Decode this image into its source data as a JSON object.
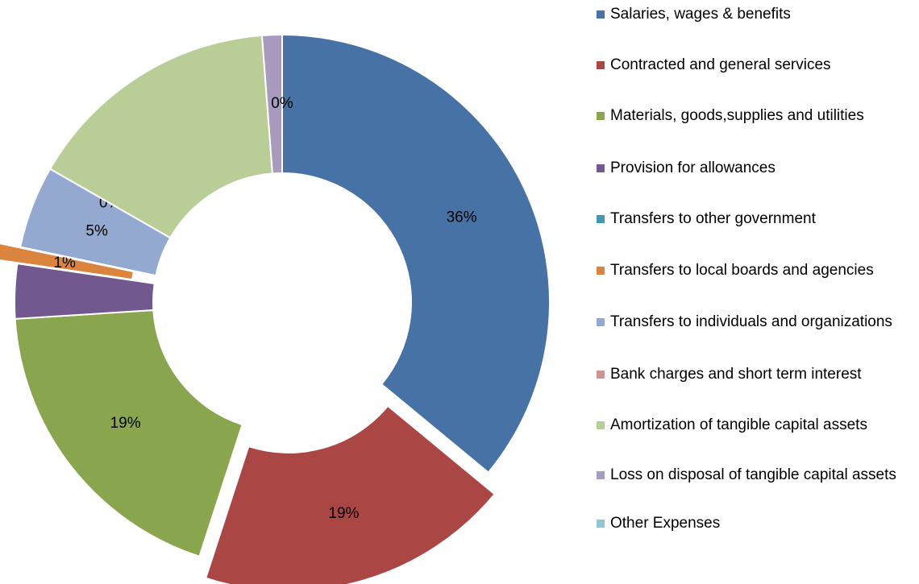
{
  "chart_data": {
    "type": "donut",
    "categories": [
      "Salaries, wages & benefits",
      "Contracted and general services",
      "Materials, goods,supplies and utilities",
      "Provision for allowances",
      "Transfers to other government",
      "Transfers to local boards and agencies",
      "Transfers to individuals and organizations",
      "Bank charges and short term interest",
      "Amortization of tangible capital assets",
      "Loss on disposal of tangible capital assets",
      "Other Expenses"
    ],
    "values": [
      36,
      19,
      19,
      3.3,
      0,
      1,
      5,
      0,
      15.5,
      1.2,
      0
    ],
    "value_labels": [
      "36%",
      "19%",
      "19%",
      null,
      null,
      "1%",
      "5%",
      "0%",
      null,
      null,
      "0%"
    ],
    "colors": [
      "#4672a6",
      "#aa4643",
      "#89a54e",
      "#71588f",
      "#4198af",
      "#db843d",
      "#93a9cf",
      "#d19392",
      "#b9cd96",
      "#a99bbd",
      "#92c5d5"
    ],
    "exploded": [
      1,
      5
    ],
    "legend": "right"
  }
}
